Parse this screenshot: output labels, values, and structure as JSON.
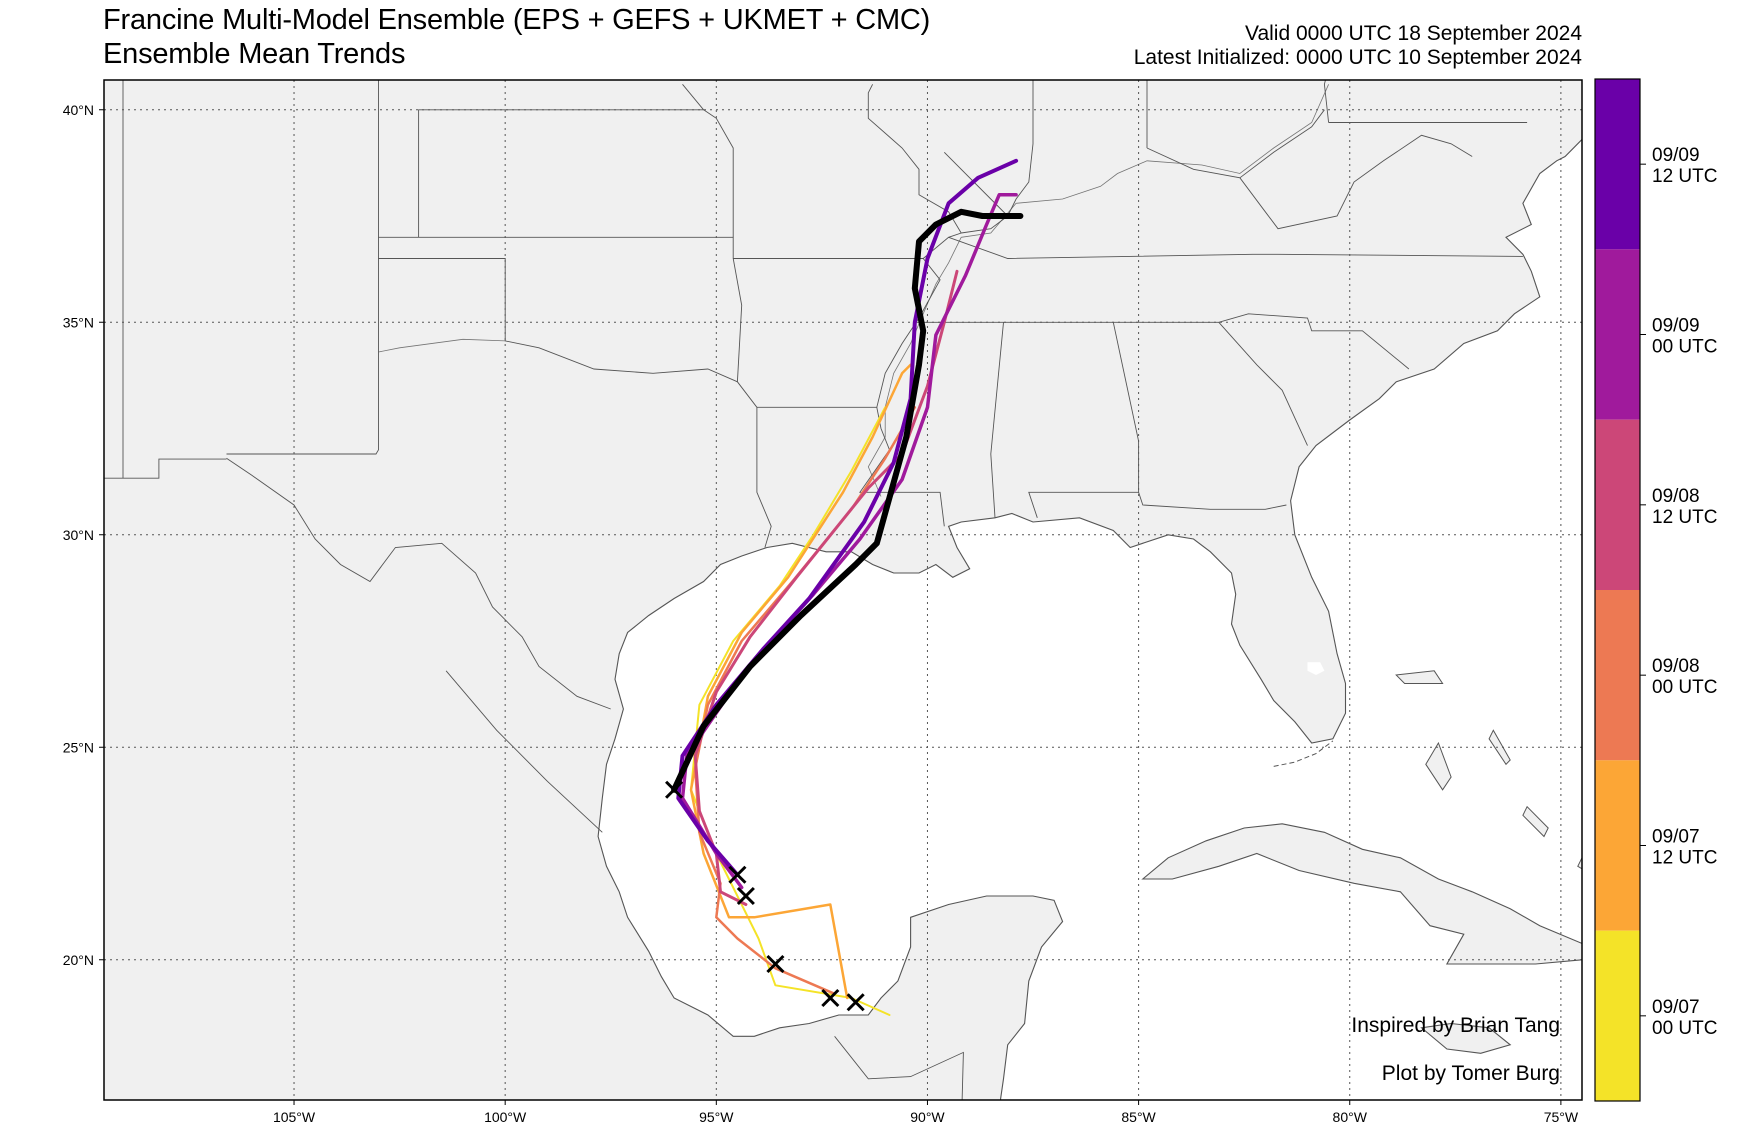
{
  "header": {
    "title": "Francine Multi-Model Ensemble (EPS + GEFS + UKMET + CMC)",
    "subtitle": "Ensemble Mean Trends",
    "valid": "Valid 0000 UTC 18 September 2024",
    "initialized": "Latest Initialized: 0000 UTC 10 September 2024"
  },
  "credits": {
    "inspired": "Inspired by Brian Tang",
    "plot": "Plot by Tomer Burg"
  },
  "map": {
    "lon_range": [
      -109.5,
      -74.5
    ],
    "lat_range": [
      16.7,
      40.7
    ],
    "lon_ticks": [
      {
        "lon": -105,
        "label": "105°W"
      },
      {
        "lon": -100,
        "label": "100°W"
      },
      {
        "lon": -95,
        "label": "95°W"
      },
      {
        "lon": -90,
        "label": "90°W"
      },
      {
        "lon": -85,
        "label": "85°W"
      },
      {
        "lon": -80,
        "label": "80°W"
      },
      {
        "lon": -75,
        "label": "75°W"
      }
    ],
    "lat_ticks": [
      {
        "lat": 20,
        "label": "20°N"
      },
      {
        "lat": 25,
        "label": "25°N"
      },
      {
        "lat": 30,
        "label": "30°N"
      },
      {
        "lat": 35,
        "label": "35°N"
      },
      {
        "lat": 40,
        "label": "40°N"
      }
    ],
    "land_color": "#f0f0f0",
    "ocean_color": "#ffffff",
    "border_color": "#555555"
  },
  "colorbar": {
    "entries": [
      {
        "line1": "09/09",
        "line2": "12 UTC",
        "color": "#6a00a8"
      },
      {
        "line1": "09/09",
        "line2": "00 UTC",
        "color": "#a01a9c"
      },
      {
        "line1": "09/08",
        "line2": "12 UTC",
        "color": "#cc4778"
      },
      {
        "line1": "09/08",
        "line2": "00 UTC",
        "color": "#ed7953"
      },
      {
        "line1": "09/07",
        "line2": "12 UTC",
        "color": "#fca636"
      },
      {
        "line1": "09/07",
        "line2": "00 UTC",
        "color": "#f4e328"
      }
    ]
  },
  "tracks": [
    {
      "init": "09/07 00 UTC",
      "color": "#f4e328",
      "width": 2,
      "points": [
        [
          -90.9,
          18.7
        ],
        [
          -91.8,
          19.1
        ],
        [
          -93.6,
          19.4
        ],
        [
          -94.0,
          20.5
        ],
        [
          -95.0,
          22.5
        ],
        [
          -95.6,
          24.0
        ],
        [
          -95.4,
          26.0
        ],
        [
          -94.6,
          27.5
        ],
        [
          -93.5,
          28.8
        ],
        [
          -92.7,
          30.0
        ],
        [
          -91.8,
          31.5
        ],
        [
          -91.0,
          33.0
        ]
      ]
    },
    {
      "init": "09/07 12 UTC",
      "color": "#fca636",
      "width": 2.5,
      "points": [
        [
          -91.9,
          19.1
        ],
        [
          -92.3,
          21.3
        ],
        [
          -94.1,
          21.0
        ],
        [
          -94.7,
          21.0
        ],
        [
          -95.3,
          22.5
        ],
        [
          -95.6,
          24.0
        ],
        [
          -95.2,
          26.2
        ],
        [
          -94.4,
          27.7
        ],
        [
          -93.3,
          29.0
        ],
        [
          -92.0,
          31.0
        ],
        [
          -91.3,
          32.3
        ],
        [
          -90.6,
          33.8
        ],
        [
          -90.4,
          34.0
        ]
      ]
    },
    {
      "init": "09/08 00 UTC",
      "color": "#ed7953",
      "width": 2.5,
      "points": [
        [
          -92.2,
          19.2
        ],
        [
          -93.6,
          19.8
        ],
        [
          -94.5,
          20.5
        ],
        [
          -95.0,
          21.0
        ],
        [
          -94.9,
          21.8
        ],
        [
          -95.4,
          23.0
        ],
        [
          -95.5,
          24.5
        ],
        [
          -95.2,
          26.0
        ],
        [
          -94.4,
          27.5
        ],
        [
          -93.2,
          28.9
        ],
        [
          -91.8,
          30.6
        ],
        [
          -91.0,
          31.8
        ],
        [
          -90.3,
          33.0
        ]
      ]
    },
    {
      "init": "09/08 12 UTC",
      "color": "#cc4778",
      "width": 3,
      "points": [
        [
          -94.3,
          21.3
        ],
        [
          -94.9,
          21.6
        ],
        [
          -95.0,
          22.5
        ],
        [
          -95.4,
          23.5
        ],
        [
          -95.5,
          24.8
        ],
        [
          -95.0,
          26.3
        ],
        [
          -94.2,
          27.6
        ],
        [
          -93.1,
          29.0
        ],
        [
          -91.4,
          31.1
        ],
        [
          -90.6,
          31.9
        ],
        [
          -90.0,
          33.5
        ],
        [
          -89.6,
          35.0
        ],
        [
          -89.3,
          36.2
        ]
      ]
    },
    {
      "init": "09/09 00 UTC",
      "color": "#a01a9c",
      "width": 3.5,
      "points": [
        [
          -94.4,
          21.7
        ],
        [
          -95.0,
          22.5
        ],
        [
          -95.8,
          23.8
        ],
        [
          -95.7,
          24.8
        ],
        [
          -94.8,
          26.1
        ],
        [
          -93.8,
          27.4
        ],
        [
          -92.7,
          28.6
        ],
        [
          -91.6,
          29.9
        ],
        [
          -90.6,
          31.3
        ],
        [
          -90.0,
          33.0
        ],
        [
          -89.8,
          34.7
        ],
        [
          -89.1,
          36.1
        ],
        [
          -88.6,
          37.3
        ],
        [
          -88.3,
          38.0
        ],
        [
          -87.9,
          38.0
        ]
      ]
    },
    {
      "init": "09/09 12 UTC",
      "color": "#6a00a8",
      "width": 4,
      "points": [
        [
          -94.5,
          22.0
        ],
        [
          -95.2,
          22.8
        ],
        [
          -95.9,
          23.8
        ],
        [
          -95.8,
          24.8
        ],
        [
          -95.0,
          26.0
        ],
        [
          -93.9,
          27.3
        ],
        [
          -92.8,
          28.5
        ],
        [
          -91.5,
          30.3
        ],
        [
          -90.8,
          31.7
        ],
        [
          -90.4,
          33.2
        ],
        [
          -90.3,
          35.0
        ],
        [
          -90.0,
          36.5
        ],
        [
          -89.5,
          37.8
        ],
        [
          -88.8,
          38.4
        ],
        [
          -87.9,
          38.8
        ]
      ]
    },
    {
      "init": "09/10 00 UTC",
      "color": "#000000",
      "width": 6,
      "points": [
        [
          -96.0,
          24.0
        ],
        [
          -95.3,
          25.5
        ],
        [
          -94.2,
          26.9
        ],
        [
          -93.0,
          28.1
        ],
        [
          -91.7,
          29.3
        ],
        [
          -91.2,
          29.8
        ],
        [
          -90.5,
          32.3
        ],
        [
          -90.2,
          34.0
        ],
        [
          -90.1,
          34.8
        ],
        [
          -90.3,
          35.8
        ],
        [
          -90.2,
          36.9
        ],
        [
          -89.8,
          37.3
        ],
        [
          -89.2,
          37.6
        ],
        [
          -88.7,
          37.5
        ],
        [
          -87.8,
          37.5
        ]
      ]
    }
  ],
  "init_positions": [
    {
      "init": "09/07 00 UTC",
      "lon": -91.7,
      "lat": 19.0
    },
    {
      "init": "09/07 12 UTC",
      "lon": -92.3,
      "lat": 19.1
    },
    {
      "init": "09/08 00 UTC",
      "lon": -93.6,
      "lat": 19.9
    },
    {
      "init": "09/08 12 UTC",
      "lon": -94.3,
      "lat": 21.5
    },
    {
      "init": "09/09 00 UTC",
      "lon": -94.5,
      "lat": 22.0
    },
    {
      "init": "09/10 00 UTC",
      "lon": -96.0,
      "lat": 24.0
    }
  ]
}
